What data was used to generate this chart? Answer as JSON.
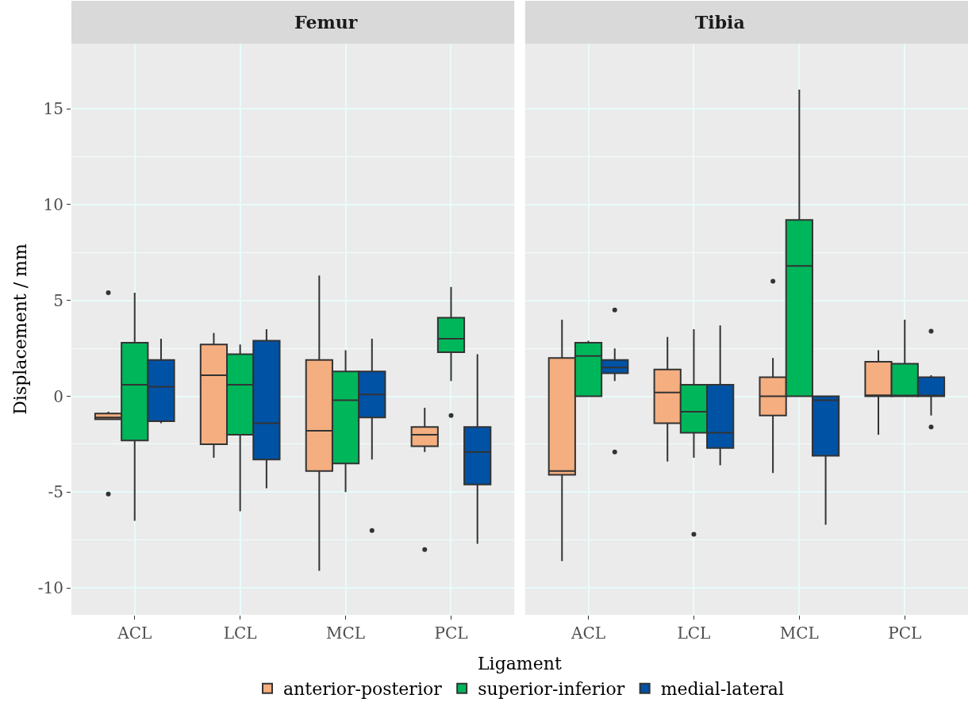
{
  "chart_data": [
    {
      "type": "box",
      "title": "Femur",
      "xlabel": "Ligament",
      "ylabel": "Displacement / mm",
      "categories": [
        "ACL",
        "LCL",
        "MCL",
        "PCL"
      ],
      "ylim": [
        -11.4,
        18.4
      ],
      "yticks": [
        -10,
        -5,
        0,
        5,
        10,
        15
      ],
      "grid": true,
      "legend": "bottom",
      "series": [
        {
          "name": "anterior-posterior",
          "color": "#f4ae80",
          "boxes": [
            {
              "low": -1.2,
              "q1": -1.2,
              "median": -1.1,
              "q3": -0.9,
              "high": -0.8,
              "outliers": [
                5.4,
                -5.1
              ]
            },
            {
              "low": -3.2,
              "q1": -2.5,
              "median": 1.1,
              "q3": 2.7,
              "high": 3.3
            },
            {
              "low": -9.1,
              "q1": -3.9,
              "median": -1.8,
              "q3": 1.9,
              "high": 6.3
            },
            {
              "low": -2.9,
              "q1": -2.6,
              "median": -2.0,
              "q3": -1.6,
              "high": -0.6,
              "outliers": [
                -8.0
              ]
            }
          ]
        },
        {
          "name": "superior-inferior",
          "color": "#00b65b",
          "boxes": [
            {
              "low": -6.5,
              "q1": -2.3,
              "median": 0.6,
              "q3": 2.8,
              "high": 5.4
            },
            {
              "low": -6.0,
              "q1": -2.0,
              "median": 0.6,
              "q3": 2.2,
              "high": 2.7
            },
            {
              "low": -5.0,
              "q1": -3.5,
              "median": -0.2,
              "q3": 1.3,
              "high": 2.4
            },
            {
              "low": 0.8,
              "q1": 2.3,
              "median": 3.0,
              "q3": 4.1,
              "high": 5.7,
              "outliers": [
                -1.0
              ]
            }
          ]
        },
        {
          "name": "medial-lateral",
          "color": "#0052a5",
          "boxes": [
            {
              "low": -1.4,
              "q1": -1.3,
              "median": 0.5,
              "q3": 1.9,
              "high": 3.0
            },
            {
              "low": -4.8,
              "q1": -3.3,
              "median": -1.4,
              "q3": 2.9,
              "high": 3.5
            },
            {
              "low": -3.3,
              "q1": -1.1,
              "median": 0.1,
              "q3": 1.3,
              "high": 3.0,
              "outliers": [
                -7.0
              ]
            },
            {
              "low": -7.7,
              "q1": -4.6,
              "median": -2.9,
              "q3": -1.6,
              "high": 2.2
            }
          ]
        }
      ]
    },
    {
      "type": "box",
      "title": "Tibia",
      "categories": [
        "ACL",
        "LCL",
        "MCL",
        "PCL"
      ],
      "ylim": [
        -11.4,
        18.4
      ],
      "yticks": [
        -10,
        -5,
        0,
        5,
        10,
        15
      ],
      "grid": true,
      "legend": "bottom",
      "tick_labels": "x",
      "series": [
        {
          "name": "anterior-posterior",
          "color": "#f4ae80",
          "boxes": [
            {
              "low": -8.6,
              "q1": -4.1,
              "median": -3.9,
              "q3": 2.0,
              "high": 4.0
            },
            {
              "low": -3.4,
              "q1": -1.4,
              "median": 0.2,
              "q3": 1.4,
              "high": 3.1
            },
            {
              "low": -4.0,
              "q1": -1.0,
              "median": 0.0,
              "q3": 1.0,
              "high": 2.0,
              "outliers": [
                6.0
              ]
            },
            {
              "low": -2.0,
              "q1": 0.0,
              "median": 0.05,
              "q3": 1.8,
              "high": 2.4
            }
          ]
        },
        {
          "name": "superior-inferior",
          "color": "#00b65b",
          "boxes": [
            {
              "low": 0.0,
              "q1": 0.0,
              "median": 2.1,
              "q3": 2.8,
              "high": 2.9
            },
            {
              "low": -3.2,
              "q1": -1.9,
              "median": -0.8,
              "q3": 0.6,
              "high": 3.5,
              "outliers": [
                -7.2
              ]
            },
            {
              "low": 0.0,
              "q1": 0.0,
              "median": 6.8,
              "q3": 9.2,
              "high": 16.0
            },
            {
              "low": 0.0,
              "q1": 0.0,
              "median": 0.0,
              "q3": 1.7,
              "high": 4.0
            }
          ]
        },
        {
          "name": "medial-lateral",
          "color": "#0052a5",
          "boxes": [
            {
              "low": 0.8,
              "q1": 1.2,
              "median": 1.5,
              "q3": 1.9,
              "high": 2.5,
              "outliers": [
                4.5,
                -2.9
              ]
            },
            {
              "low": -3.6,
              "q1": -2.7,
              "median": -1.9,
              "q3": 0.6,
              "high": 3.7
            },
            {
              "low": -6.7,
              "q1": -3.1,
              "median": -0.2,
              "q3": 0.0,
              "high": 0.0
            },
            {
              "low": -1.0,
              "q1": 0.0,
              "median": 0.0,
              "q3": 1.0,
              "high": 1.1,
              "outliers": [
                3.4,
                -1.6
              ]
            }
          ]
        }
      ]
    }
  ]
}
